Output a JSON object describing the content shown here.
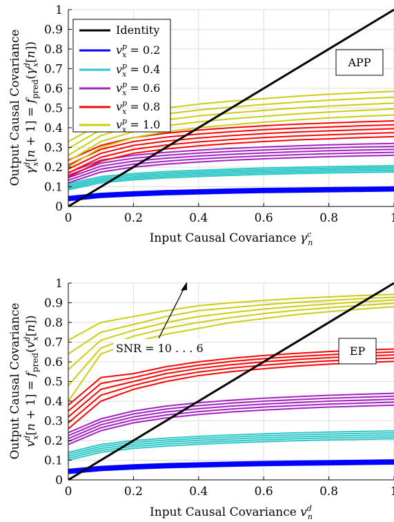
{
  "colors": {
    "identity": "#000000",
    "vx_0_2": "#0000ff",
    "vx_0_4": "#2ec7c7",
    "vx_0_6": "#a020c0",
    "vx_0_8": "#ff0000",
    "vx_1_0": "#cccc11"
  },
  "chart_data": [
    {
      "type": "line",
      "panel": "top",
      "xlabel": "Input Causal Covariance γ_n^c",
      "ylabel_line1": "Output Causal Covariance",
      "ylabel_line2": "γ_x^d[n+1] = f_pred(γ_x^d[n])",
      "annotation_box": "APP",
      "xlim": [
        0,
        1
      ],
      "ylim": [
        0,
        1
      ],
      "xticks": [
        "0",
        "0.2",
        "0.4",
        "0.6",
        "0.8",
        "1"
      ],
      "yticks": [
        "0",
        "0.1",
        "0.2",
        "0.3",
        "0.4",
        "0.5",
        "0.6",
        "0.7",
        "0.8",
        "0.9",
        "1"
      ],
      "grid": true,
      "legend_position": "top-left",
      "legend": [
        "Identity",
        "v_x^p = 0.2",
        "v_x^p = 0.4",
        "v_x^p = 0.6",
        "v_x^p = 0.8",
        "v_x^p = 1.0"
      ],
      "x": [
        0,
        0.1,
        0.2,
        0.3,
        0.4,
        0.5,
        0.6,
        0.7,
        0.8,
        0.9,
        1.0
      ],
      "identity": {
        "x": [
          0,
          1
        ],
        "y": [
          0,
          1
        ]
      },
      "groups": [
        {
          "legend": "v_x^p = 0.2",
          "color_key": "vx_0_2",
          "curves": [
            [
              0.032,
              0.048,
              0.056,
              0.062,
              0.066,
              0.07,
              0.073,
              0.075,
              0.077,
              0.079,
              0.081
            ],
            [
              0.036,
              0.052,
              0.06,
              0.066,
              0.07,
              0.074,
              0.077,
              0.079,
              0.081,
              0.083,
              0.085
            ],
            [
              0.04,
              0.056,
              0.064,
              0.07,
              0.074,
              0.078,
              0.081,
              0.083,
              0.085,
              0.087,
              0.089
            ],
            [
              0.044,
              0.06,
              0.068,
              0.074,
              0.078,
              0.082,
              0.085,
              0.087,
              0.089,
              0.091,
              0.093
            ],
            [
              0.048,
              0.064,
              0.072,
              0.078,
              0.082,
              0.086,
              0.089,
              0.091,
              0.093,
              0.095,
              0.097
            ]
          ]
        },
        {
          "legend": "v_x^p = 0.4",
          "color_key": "vx_0_4",
          "curves": [
            [
              0.085,
              0.12,
              0.135,
              0.145,
              0.152,
              0.158,
              0.163,
              0.167,
              0.17,
              0.173,
              0.175
            ],
            [
              0.092,
              0.128,
              0.143,
              0.153,
              0.16,
              0.166,
              0.171,
              0.175,
              0.178,
              0.181,
              0.183
            ],
            [
              0.1,
              0.136,
              0.151,
              0.161,
              0.168,
              0.174,
              0.179,
              0.183,
              0.186,
              0.189,
              0.191
            ],
            [
              0.108,
              0.144,
              0.159,
              0.169,
              0.176,
              0.182,
              0.187,
              0.191,
              0.194,
              0.197,
              0.199
            ],
            [
              0.116,
              0.152,
              0.167,
              0.177,
              0.184,
              0.19,
              0.195,
              0.199,
              0.202,
              0.205,
              0.207
            ]
          ]
        },
        {
          "legend": "v_x^p = 0.6",
          "color_key": "vx_0_6",
          "curves": [
            [
              0.12,
              0.175,
              0.2,
              0.215,
              0.226,
              0.235,
              0.242,
              0.248,
              0.253,
              0.257,
              0.26
            ],
            [
              0.133,
              0.19,
              0.215,
              0.23,
              0.241,
              0.25,
              0.257,
              0.263,
              0.268,
              0.272,
              0.275
            ],
            [
              0.146,
              0.205,
              0.23,
              0.245,
              0.256,
              0.265,
              0.272,
              0.278,
              0.283,
              0.287,
              0.29
            ],
            [
              0.159,
              0.22,
              0.245,
              0.26,
              0.271,
              0.28,
              0.287,
              0.293,
              0.298,
              0.302,
              0.305
            ],
            [
              0.172,
              0.235,
              0.26,
              0.275,
              0.286,
              0.295,
              0.302,
              0.308,
              0.313,
              0.317,
              0.32
            ]
          ]
        },
        {
          "legend": "v_x^p = 0.8",
          "color_key": "vx_0_8",
          "curves": [
            [
              0.15,
              0.23,
              0.27,
              0.292,
              0.308,
              0.32,
              0.33,
              0.338,
              0.344,
              0.35,
              0.355
            ],
            [
              0.17,
              0.25,
              0.29,
              0.312,
              0.328,
              0.34,
              0.35,
              0.358,
              0.364,
              0.37,
              0.375
            ],
            [
              0.19,
              0.27,
              0.31,
              0.332,
              0.348,
              0.36,
              0.37,
              0.378,
              0.384,
              0.39,
              0.395
            ],
            [
              0.21,
              0.29,
              0.33,
              0.352,
              0.368,
              0.38,
              0.39,
              0.398,
              0.404,
              0.41,
              0.415
            ],
            [
              0.235,
              0.31,
              0.35,
              0.372,
              0.388,
              0.4,
              0.41,
              0.418,
              0.424,
              0.43,
              0.435
            ]
          ]
        },
        {
          "legend": "v_x^p = 1.0",
          "color_key": "vx_1_0",
          "curves": [
            [
              0.2,
              0.3,
              0.35,
              0.38,
              0.4,
              0.415,
              0.428,
              0.44,
              0.45,
              0.458,
              0.465
            ],
            [
              0.23,
              0.33,
              0.38,
              0.41,
              0.43,
              0.445,
              0.458,
              0.47,
              0.48,
              0.488,
              0.495
            ],
            [
              0.26,
              0.36,
              0.41,
              0.44,
              0.46,
              0.475,
              0.488,
              0.5,
              0.51,
              0.518,
              0.525
            ],
            [
              0.295,
              0.39,
              0.44,
              0.47,
              0.49,
              0.505,
              0.518,
              0.53,
              0.54,
              0.548,
              0.555
            ],
            [
              0.33,
              0.42,
              0.47,
              0.5,
              0.52,
              0.535,
              0.548,
              0.56,
              0.57,
              0.578,
              0.585
            ]
          ]
        }
      ]
    },
    {
      "type": "line",
      "panel": "bottom",
      "xlabel": "Input Causal Covariance v_n^d",
      "ylabel_line1": "Output Causal Covariance",
      "ylabel_line2": "v_x^d[n+1] = f_pred(v_x^d[n])",
      "annotation_box": "EP",
      "annotation_arrow": "SNR = 10…6",
      "xlim": [
        0,
        1
      ],
      "ylim": [
        0,
        1
      ],
      "xticks": [
        "0",
        "0.2",
        "0.4",
        "0.6",
        "0.8",
        "1"
      ],
      "yticks": [
        "0",
        "0.1",
        "0.2",
        "0.3",
        "0.4",
        "0.5",
        "0.6",
        "0.7",
        "0.8",
        "0.9",
        "1"
      ],
      "grid": true,
      "x": [
        0,
        0.1,
        0.2,
        0.3,
        0.4,
        0.5,
        0.6,
        0.7,
        0.8,
        0.9,
        1.0
      ],
      "identity": {
        "x": [
          0,
          1
        ],
        "y": [
          0,
          1
        ]
      },
      "groups": [
        {
          "color_key": "vx_0_2",
          "curves": [
            [
              0.035,
              0.05,
              0.058,
              0.064,
              0.068,
              0.072,
              0.075,
              0.077,
              0.079,
              0.081,
              0.083
            ],
            [
              0.039,
              0.054,
              0.062,
              0.068,
              0.072,
              0.076,
              0.079,
              0.081,
              0.083,
              0.085,
              0.087
            ],
            [
              0.043,
              0.058,
              0.066,
              0.072,
              0.076,
              0.08,
              0.083,
              0.085,
              0.087,
              0.089,
              0.091
            ],
            [
              0.047,
              0.062,
              0.07,
              0.076,
              0.08,
              0.084,
              0.087,
              0.089,
              0.091,
              0.093,
              0.095
            ],
            [
              0.051,
              0.066,
              0.074,
              0.08,
              0.084,
              0.088,
              0.091,
              0.093,
              0.095,
              0.097,
              0.099
            ]
          ]
        },
        {
          "color_key": "vx_0_4",
          "curves": [
            [
              0.1,
              0.14,
              0.16,
              0.172,
              0.181,
              0.188,
              0.194,
              0.199,
              0.203,
              0.206,
              0.209
            ],
            [
              0.11,
              0.15,
              0.17,
              0.182,
              0.191,
              0.198,
              0.204,
              0.209,
              0.213,
              0.216,
              0.219
            ],
            [
              0.12,
              0.16,
              0.18,
              0.192,
              0.201,
              0.208,
              0.214,
              0.219,
              0.223,
              0.226,
              0.229
            ],
            [
              0.13,
              0.17,
              0.19,
              0.202,
              0.211,
              0.218,
              0.224,
              0.229,
              0.233,
              0.236,
              0.239
            ],
            [
              0.14,
              0.18,
              0.2,
              0.212,
              0.221,
              0.228,
              0.234,
              0.239,
              0.243,
              0.246,
              0.249
            ]
          ]
        },
        {
          "color_key": "vx_0_6",
          "curves": [
            [
              0.18,
              0.25,
              0.29,
              0.315,
              0.332,
              0.345,
              0.355,
              0.363,
              0.37,
              0.375,
              0.38
            ],
            [
              0.195,
              0.265,
              0.305,
              0.33,
              0.347,
              0.36,
              0.37,
              0.378,
              0.385,
              0.39,
              0.395
            ],
            [
              0.21,
              0.28,
              0.32,
              0.345,
              0.362,
              0.375,
              0.385,
              0.393,
              0.4,
              0.405,
              0.41
            ],
            [
              0.225,
              0.295,
              0.335,
              0.36,
              0.377,
              0.39,
              0.4,
              0.408,
              0.415,
              0.42,
              0.425
            ],
            [
              0.24,
              0.31,
              0.35,
              0.375,
              0.392,
              0.405,
              0.415,
              0.423,
              0.43,
              0.435,
              0.44
            ]
          ]
        },
        {
          "color_key": "vx_0_8",
          "curves": [
            [
              0.26,
              0.4,
              0.46,
              0.5,
              0.53,
              0.55,
              0.565,
              0.578,
              0.588,
              0.596,
              0.602
            ],
            [
              0.29,
              0.43,
              0.48,
              0.52,
              0.548,
              0.568,
              0.583,
              0.595,
              0.605,
              0.613,
              0.619
            ],
            [
              0.32,
              0.46,
              0.5,
              0.54,
              0.566,
              0.585,
              0.6,
              0.612,
              0.621,
              0.629,
              0.635
            ],
            [
              0.35,
              0.49,
              0.52,
              0.558,
              0.583,
              0.602,
              0.616,
              0.627,
              0.636,
              0.644,
              0.65
            ],
            [
              0.38,
              0.52,
              0.54,
              0.575,
              0.6,
              0.618,
              0.632,
              0.643,
              0.652,
              0.66,
              0.665
            ]
          ]
        },
        {
          "color_key": "vx_1_0",
          "curves": [
            [
              0.4,
              0.64,
              0.7,
              0.74,
              0.77,
              0.8,
              0.82,
              0.84,
              0.855,
              0.868,
              0.88
            ],
            [
              0.48,
              0.67,
              0.73,
              0.77,
              0.8,
              0.825,
              0.845,
              0.862,
              0.875,
              0.887,
              0.898
            ],
            [
              0.56,
              0.71,
              0.76,
              0.8,
              0.83,
              0.85,
              0.868,
              0.882,
              0.894,
              0.905,
              0.914
            ],
            [
              0.64,
              0.75,
              0.79,
              0.83,
              0.86,
              0.875,
              0.89,
              0.902,
              0.912,
              0.921,
              0.928
            ],
            [
              0.71,
              0.8,
              0.83,
              0.86,
              0.885,
              0.9,
              0.912,
              0.922,
              0.93,
              0.937,
              0.943
            ]
          ]
        }
      ]
    }
  ]
}
